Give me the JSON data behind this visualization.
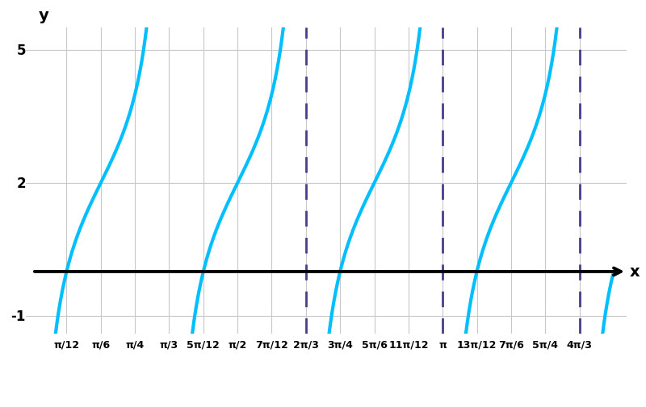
{
  "y_shift": 2,
  "amplitude": 2.0,
  "b_coeff": 3,
  "phase_shift": 6.283185307179586,
  "ylim": [
    -1.4,
    5.5
  ],
  "xlim": [
    -0.05,
    4.55
  ],
  "plot_xlim": [
    0.0,
    4.45
  ],
  "y_ticks": [
    -1,
    2,
    5
  ],
  "x_tick_labels": [
    [
      "π/12",
      0.2618
    ],
    [
      "π/6",
      0.5236
    ],
    [
      "π/4",
      0.7854
    ],
    [
      "π/3",
      1.0472
    ],
    [
      "5π/12",
      1.309
    ],
    [
      "π/2",
      1.5708
    ],
    [
      "7π/12",
      1.8326
    ],
    [
      "2π/3",
      2.0944
    ],
    [
      "3π/4",
      2.35619
    ],
    [
      "5π/6",
      2.61799
    ],
    [
      "11π/12",
      2.87979
    ],
    [
      "π",
      3.14159
    ],
    [
      "13π/12",
      3.40339
    ],
    [
      "7π/6",
      3.66519
    ],
    [
      "5π/4",
      3.92699
    ],
    [
      "4π/3",
      4.18879
    ]
  ],
  "asymptotes": [
    2.0944,
    3.14159,
    4.18879
  ],
  "curve_color": "#00BFFF",
  "asymptote_color": "#483D8B",
  "axis_color": "#000000",
  "grid_color": "#c8c8c8",
  "background_color": "#ffffff",
  "curve_linewidth": 3.0,
  "asymptote_linewidth": 2.0,
  "arrow_color": "#00BFFF",
  "axis_lw": 2.8,
  "label_fontsize": 14,
  "tick_fontsize": 12,
  "xtick_fontsize": 9
}
